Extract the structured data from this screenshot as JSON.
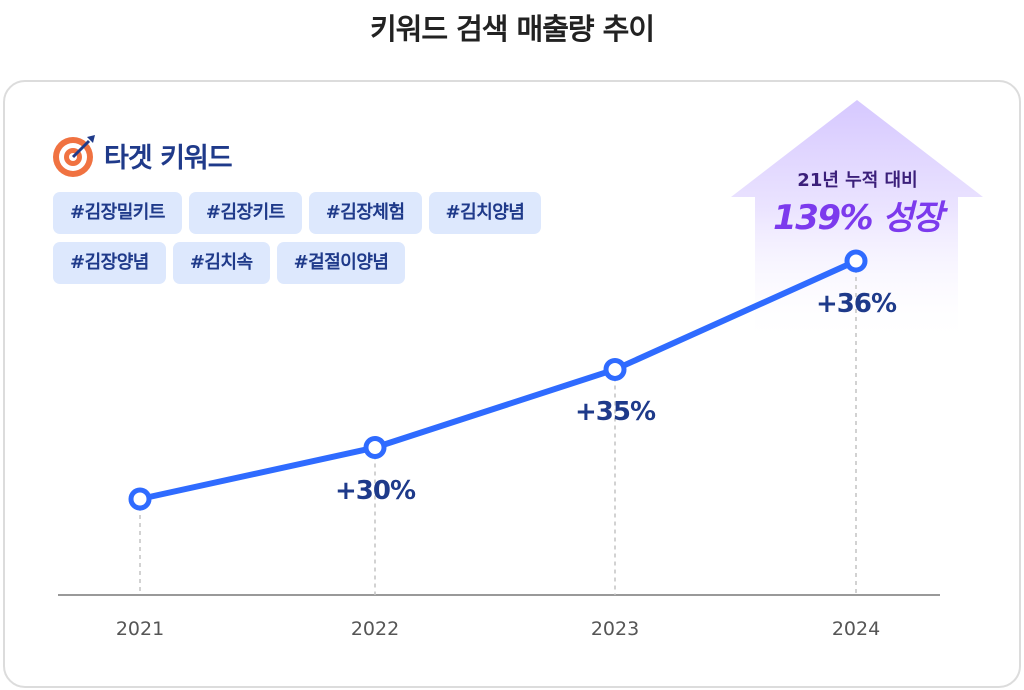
{
  "title": "키워드 검색 매출량 추이",
  "keywords": {
    "heading": "타겟 키워드",
    "tags": [
      "#김장밀키트",
      "#김장키트",
      "#김장체험",
      "#김치양념",
      "#김장양념",
      "#김치속",
      "#겉절이양념"
    ]
  },
  "badge": {
    "subtitle": "21년 누적 대비",
    "headline": "139% 성장"
  },
  "colors": {
    "line": "#2f6bff",
    "label": "#1e3a8a",
    "badge": "#7c3aed",
    "tag_bg": "#dde8fd"
  },
  "chart_data": {
    "type": "line",
    "title": "키워드 검색 매출량 추이",
    "categories": [
      "2021",
      "2022",
      "2023",
      "2024"
    ],
    "values": [
      100,
      130,
      175.5,
      238.7
    ],
    "data_labels": [
      "",
      "+30%",
      "+35%",
      "+36%"
    ],
    "xlabel": "",
    "ylabel": "",
    "grid": false,
    "annotation": "21년 누적 대비 139% 성장"
  }
}
